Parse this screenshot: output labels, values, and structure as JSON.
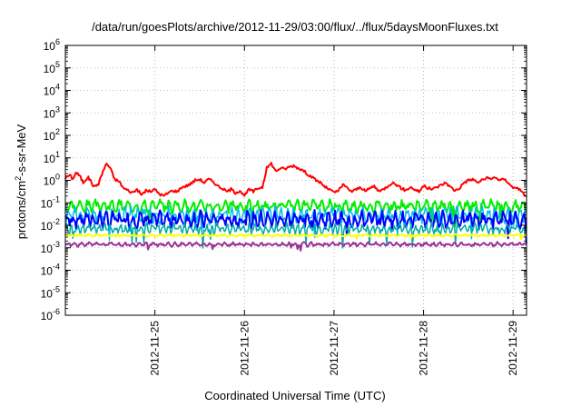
{
  "chart_data": {
    "type": "line",
    "title": "/data/run/goesPlots/archive/2012-11-29/03:00/flux/../flux/5daysMoonFluxes.txt",
    "xlabel": "Coordinated Universal Time (UTC)",
    "ylabel": {
      "base": "protons/cm",
      "sup": "2",
      "rest": "-s-sr-MeV"
    },
    "yscale": "log",
    "ylim_exp": [
      -6,
      6
    ],
    "y_ticks": [
      {
        "base": "10",
        "exp": "6"
      },
      {
        "base": "10",
        "exp": "5"
      },
      {
        "base": "10",
        "exp": "4"
      },
      {
        "base": "10",
        "exp": "3"
      },
      {
        "base": "10",
        "exp": "2"
      },
      {
        "base": "10",
        "exp": "1"
      },
      {
        "base": "10",
        "exp": "0"
      },
      {
        "base": "10",
        "exp": "-1"
      },
      {
        "base": "10",
        "exp": "-2"
      },
      {
        "base": "10",
        "exp": "-3"
      },
      {
        "base": "10",
        "exp": "-4"
      },
      {
        "base": "10",
        "exp": "-5"
      },
      {
        "base": "10",
        "exp": "-6"
      }
    ],
    "xlim": [
      24.0,
      29.15
    ],
    "x_ticks": [
      {
        "label": "2012-11-25",
        "value": 25
      },
      {
        "label": "2012-11-26",
        "value": 26
      },
      {
        "label": "2012-11-27",
        "value": 27
      },
      {
        "label": "2012-11-28",
        "value": 28
      },
      {
        "label": "2012-11-29",
        "value": 29
      }
    ],
    "grid": true,
    "series": [
      {
        "color": "#ff0000",
        "style": "curve",
        "width": 2,
        "x": [
          24.0,
          24.05,
          24.08,
          24.12,
          24.16,
          24.2,
          24.25,
          24.28,
          24.32,
          24.37,
          24.42,
          24.46,
          24.5,
          24.55,
          24.6,
          24.65,
          24.7,
          24.75,
          24.8,
          24.85,
          24.9,
          24.95,
          25.0,
          25.05,
          25.1,
          25.15,
          25.2,
          25.25,
          25.3,
          25.35,
          25.4,
          25.45,
          25.5,
          25.55,
          25.6,
          25.65,
          25.7,
          25.75,
          25.8,
          25.85,
          25.9,
          25.95,
          26.0,
          26.05,
          26.1,
          26.15,
          26.2,
          26.25,
          26.3,
          26.35,
          26.4,
          26.45,
          26.5,
          26.55,
          26.6,
          26.65,
          26.7,
          26.75,
          26.8,
          26.85,
          26.9,
          26.95,
          27.0,
          27.05,
          27.1,
          27.15,
          27.2,
          27.25,
          27.3,
          27.35,
          27.4,
          27.45,
          27.5,
          27.55,
          27.6,
          27.65,
          27.7,
          27.75,
          27.8,
          27.85,
          27.9,
          27.95,
          28.0,
          28.05,
          28.1,
          28.15,
          28.2,
          28.25,
          28.3,
          28.35,
          28.4,
          28.45,
          28.5,
          28.55,
          28.6,
          28.65,
          28.7,
          28.75,
          28.8,
          28.85,
          28.9,
          28.95,
          29.0,
          29.05,
          29.1,
          29.15
        ],
        "log": [
          0.1,
          0.25,
          0.05,
          0.35,
          0.2,
          -0.1,
          0.15,
          0.0,
          -0.3,
          -0.15,
          0.4,
          0.75,
          0.55,
          0.05,
          -0.05,
          -0.35,
          -0.45,
          -0.55,
          -0.4,
          -0.65,
          -0.45,
          -0.5,
          -0.4,
          -0.6,
          -0.7,
          -0.55,
          -0.45,
          -0.5,
          -0.3,
          -0.25,
          -0.15,
          0.0,
          0.05,
          -0.1,
          0.05,
          -0.05,
          -0.25,
          -0.35,
          -0.5,
          -0.4,
          -0.55,
          -0.45,
          -0.7,
          -0.4,
          -0.5,
          -0.35,
          -0.3,
          0.55,
          0.75,
          0.4,
          0.55,
          0.5,
          0.6,
          0.65,
          0.55,
          0.45,
          0.3,
          0.15,
          0.0,
          -0.1,
          -0.3,
          -0.4,
          -0.55,
          -0.45,
          -0.2,
          -0.35,
          -0.5,
          -0.4,
          -0.3,
          -0.5,
          -0.35,
          -0.25,
          -0.5,
          -0.4,
          -0.25,
          -0.1,
          -0.2,
          -0.35,
          -0.45,
          -0.3,
          -0.4,
          -0.5,
          -0.25,
          -0.35,
          -0.4,
          -0.3,
          -0.2,
          -0.1,
          -0.3,
          -0.45,
          -0.35,
          -0.1,
          0.0,
          0.05,
          -0.1,
          0.0,
          0.1,
          0.05,
          0.15,
          0.0,
          0.05,
          -0.1,
          -0.35,
          -0.3,
          -0.55,
          -0.7
        ]
      },
      {
        "color": "#00ee00",
        "style": "noise",
        "width": 2,
        "x": [
          24.0,
          29.15
        ],
        "log": [
          -1.15,
          -1.15
        ],
        "amp": 0.3,
        "period": 0.09,
        "seed": 3
      },
      {
        "color": "#00bbee",
        "style": "noise",
        "width": 1.5,
        "x": [
          24.0,
          29.15
        ],
        "log": [
          -1.55,
          -1.55
        ],
        "amp": 0.4,
        "period": 0.07,
        "seed": 11
      },
      {
        "color": "#0000ff",
        "style": "noise",
        "width": 2,
        "x": [
          24.0,
          29.15
        ],
        "log": [
          -1.75,
          -1.75
        ],
        "amp": 0.4,
        "period": 0.075,
        "seed": 7
      },
      {
        "color": "#00aaaa",
        "style": "noise",
        "width": 1.5,
        "x": [
          24.0,
          29.15
        ],
        "log": [
          -2.15,
          -2.15
        ],
        "amp": 0.28,
        "period": 0.06,
        "seed": 19
      },
      {
        "color": "#ffff00",
        "style": "noise",
        "width": 2,
        "x": [
          24.0,
          29.15
        ],
        "log": [
          -2.45,
          -2.45
        ],
        "amp": 0.06,
        "period": 0.1,
        "seed": 23
      },
      {
        "color": "#993399",
        "style": "noise",
        "width": 2,
        "x": [
          24.0,
          29.15
        ],
        "log": [
          -2.85,
          -2.85
        ],
        "amp": 0.1,
        "period": 0.08,
        "seed": 31
      }
    ]
  }
}
